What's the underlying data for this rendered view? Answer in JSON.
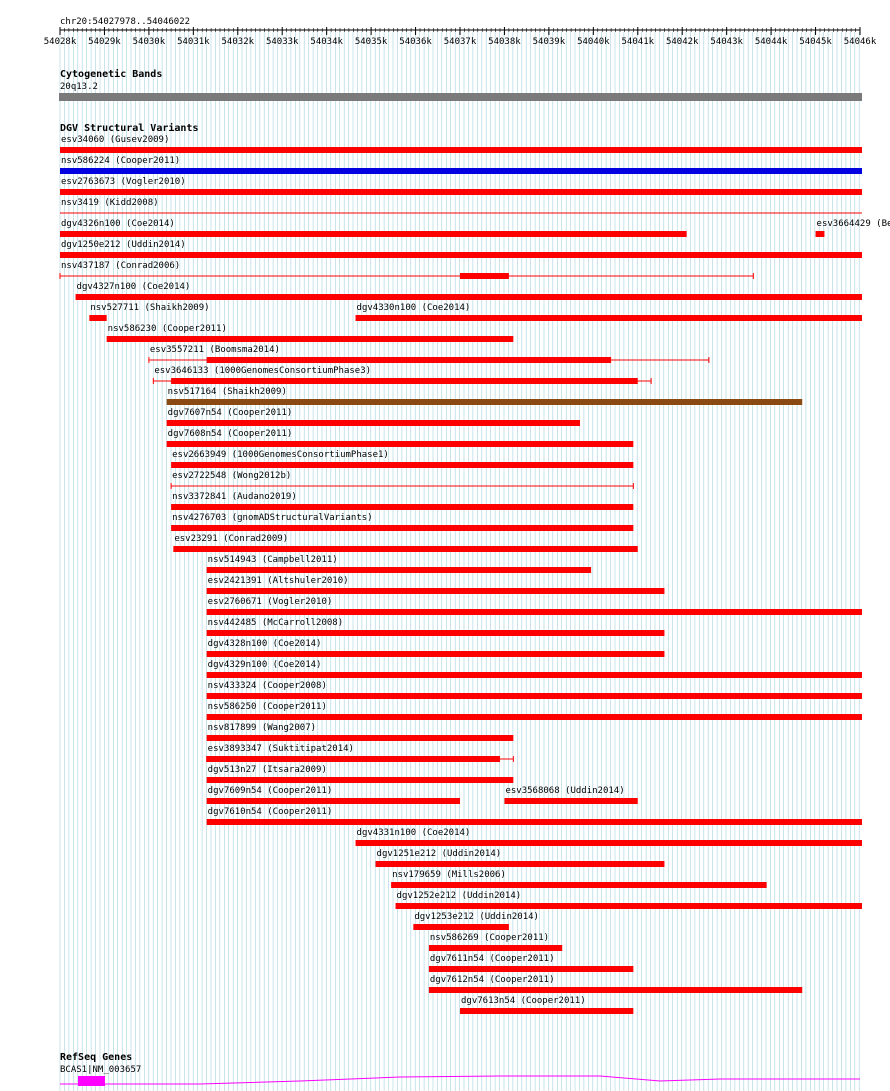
{
  "ruler": {
    "range_label": "chr20:54027978..54046022",
    "ticks": [
      "54028k",
      "54029k",
      "54030k",
      "54031k",
      "54032k",
      "54033k",
      "54034k",
      "54035k",
      "54036k",
      "54037k",
      "54038k",
      "54039k",
      "54040k",
      "54041k",
      "54042k",
      "54043k",
      "54044k",
      "54045k",
      "54046k"
    ]
  },
  "colors": {
    "grid": "#a6d2e0",
    "red": "#ff0000",
    "blue": "#0000e0",
    "brown": "#8b4a14",
    "band_gray": "#7a7a7a",
    "magenta": "#ff00ff"
  },
  "cytoband": {
    "title": "Cytogenetic Bands",
    "label": "20q13.2"
  },
  "dgv": {
    "title": "DGV Structural Variants",
    "features": [
      {
        "label": "esv34060 (Gusev2009)",
        "color": "red",
        "segs": [
          [
            54028.0,
            54046.1
          ]
        ]
      },
      {
        "label": "nsv586224 (Cooper2011)",
        "color": "blue",
        "segs": [
          [
            54028.0,
            54046.1
          ]
        ]
      },
      {
        "label": "esv2763673 (Vogler2010)",
        "color": "red",
        "segs": [
          [
            54028.0,
            54046.1
          ]
        ]
      },
      {
        "label": "nsv3419 (Kidd2008)",
        "color": "red",
        "style": "thin",
        "segs": [
          [
            54028.0,
            54046.1
          ]
        ]
      },
      {
        "label": "dgv4326n100 (Coe2014)",
        "color": "red",
        "segs": [
          [
            54028.0,
            54042.1
          ]
        ]
      },
      {
        "label": "esv3664429 (Bergen2015)",
        "color": "red",
        "segs": [
          [
            54045.0,
            54045.2
          ]
        ]
      },
      {
        "label": "dgv1250e212 (Uddin2014)",
        "color": "red",
        "segs": [
          [
            54028.0,
            54046.1
          ]
        ]
      },
      {
        "label": "nsv437187 (Conrad2006)",
        "color": "red",
        "line": [
          54028.0,
          54043.6
        ],
        "segs": [
          [
            54037.0,
            54038.1
          ]
        ]
      },
      {
        "label": "dgv4327n100 (Coe2014)",
        "color": "red",
        "segs": [
          [
            54028.35,
            54046.1
          ]
        ]
      },
      {
        "label": "nsv527711 (Shaikh2009)",
        "color": "red",
        "segs": [
          [
            54028.66,
            54029.05
          ]
        ]
      },
      {
        "label": "dgv4330n100 (Coe2014)",
        "color": "red",
        "segs": [
          [
            54034.65,
            54046.1
          ]
        ]
      },
      {
        "label": "nsv586230 (Cooper2011)",
        "color": "red",
        "segs": [
          [
            54029.05,
            54038.2
          ]
        ]
      },
      {
        "label": "esv3557211 (Boomsma2014)",
        "color": "red",
        "line": [
          54030.0,
          54042.6
        ],
        "segs": [
          [
            54031.3,
            54040.4
          ]
        ]
      },
      {
        "label": "esv3646133 (1000GenomesConsortiumPhase3)",
        "color": "red",
        "line": [
          54030.1,
          54041.3
        ],
        "segs": [
          [
            54030.5,
            54041.0
          ]
        ]
      },
      {
        "label": "nsv517164 (Shaikh2009)",
        "color": "brown",
        "segs": [
          [
            54030.4,
            54044.7
          ]
        ]
      },
      {
        "label": "dgv7607n54 (Cooper2011)",
        "color": "red",
        "segs": [
          [
            54030.4,
            54039.7
          ]
        ]
      },
      {
        "label": "dgv7608n54 (Cooper2011)",
        "color": "red",
        "segs": [
          [
            54030.4,
            54040.9
          ]
        ]
      },
      {
        "label": "esv2663949 (1000GenomesConsortiumPhase1)",
        "color": "red",
        "segs": [
          [
            54030.5,
            54040.9
          ]
        ]
      },
      {
        "label": "esv2722548 (Wong2012b)",
        "color": "red",
        "style": "thin",
        "line": [
          54030.5,
          54040.9
        ],
        "segs": []
      },
      {
        "label": "nsv3372841 (Audano2019)",
        "color": "red",
        "segs": [
          [
            54030.5,
            54040.9
          ]
        ]
      },
      {
        "label": "nsv4276703 (gnomADStructuralVariants)",
        "color": "red",
        "segs": [
          [
            54030.5,
            54040.9
          ]
        ]
      },
      {
        "label": "esv23291 (Conrad2009)",
        "color": "red",
        "segs": [
          [
            54030.55,
            54041.0
          ]
        ]
      },
      {
        "label": "nsv514943 (Campbell2011)",
        "color": "red",
        "segs": [
          [
            54031.3,
            54039.95
          ]
        ]
      },
      {
        "label": "esv2421391 (Altshuler2010)",
        "color": "red",
        "segs": [
          [
            54031.3,
            54041.6
          ]
        ]
      },
      {
        "label": "esv2760671 (Vogler2010)",
        "color": "red",
        "segs": [
          [
            54031.3,
            54046.1
          ]
        ]
      },
      {
        "label": "nsv442485 (McCarroll2008)",
        "color": "red",
        "segs": [
          [
            54031.3,
            54041.6
          ]
        ]
      },
      {
        "label": "dgv4328n100 (Coe2014)",
        "color": "red",
        "segs": [
          [
            54031.3,
            54041.6
          ]
        ]
      },
      {
        "label": "dgv4329n100 (Coe2014)",
        "color": "red",
        "segs": [
          [
            54031.3,
            54046.1
          ]
        ]
      },
      {
        "label": "nsv433324 (Cooper2008)",
        "color": "red",
        "segs": [
          [
            54031.3,
            54046.1
          ]
        ]
      },
      {
        "label": "nsv586250 (Cooper2011)",
        "color": "red",
        "segs": [
          [
            54031.3,
            54046.1
          ]
        ]
      },
      {
        "label": "nsv817899 (Wang2007)",
        "color": "red",
        "segs": [
          [
            54031.3,
            54038.2
          ]
        ]
      },
      {
        "label": "esv3893347 (Suktitipat2014)",
        "color": "red",
        "line": [
          54031.3,
          54038.2
        ],
        "segs": [
          [
            54031.3,
            54037.9
          ]
        ]
      },
      {
        "label": "dgv513n27 (Itsara2009)",
        "color": "red",
        "segs": [
          [
            54031.3,
            54038.2
          ]
        ]
      },
      {
        "label": "dgv7609n54 (Cooper2011)",
        "color": "red",
        "segs": [
          [
            54031.3,
            54037.0
          ]
        ]
      },
      {
        "label": "esv3568068 (Uddin2014)",
        "color": "red",
        "segs": [
          [
            54038.0,
            54041.0
          ]
        ]
      },
      {
        "label": "dgv7610n54 (Cooper2011)",
        "color": "red",
        "segs": [
          [
            54031.3,
            54046.1
          ]
        ]
      },
      {
        "label": "dgv4331n100 (Coe2014)",
        "color": "red",
        "segs": [
          [
            54034.65,
            54046.1
          ]
        ]
      },
      {
        "label": "dgv1251e212 (Uddin2014)",
        "color": "red",
        "segs": [
          [
            54035.1,
            54041.6
          ]
        ]
      },
      {
        "label": "nsv179659 (Mills2006)",
        "color": "red",
        "segs": [
          [
            54035.45,
            54043.9
          ]
        ]
      },
      {
        "label": "dgv1252e212 (Uddin2014)",
        "color": "red",
        "segs": [
          [
            54035.55,
            54046.1
          ]
        ]
      },
      {
        "label": "dgv1253e212 (Uddin2014)",
        "color": "red",
        "segs": [
          [
            54035.95,
            54038.1
          ]
        ]
      },
      {
        "label": "nsv586269 (Cooper2011)",
        "color": "red",
        "segs": [
          [
            54036.3,
            54039.3
          ]
        ]
      },
      {
        "label": "dgv7611n54 (Cooper2011)",
        "color": "red",
        "segs": [
          [
            54036.3,
            54040.9
          ]
        ]
      },
      {
        "label": "dgv7612n54 (Cooper2011)",
        "color": "red",
        "segs": [
          [
            54036.3,
            54044.7
          ]
        ]
      },
      {
        "label": "dgv7613n54 (Cooper2011)",
        "color": "red",
        "segs": [
          [
            54037.0,
            54040.9
          ]
        ]
      }
    ]
  },
  "refseq": {
    "title": "RefSeq Genes",
    "gene_label": "BCAS1|NM_003657"
  }
}
